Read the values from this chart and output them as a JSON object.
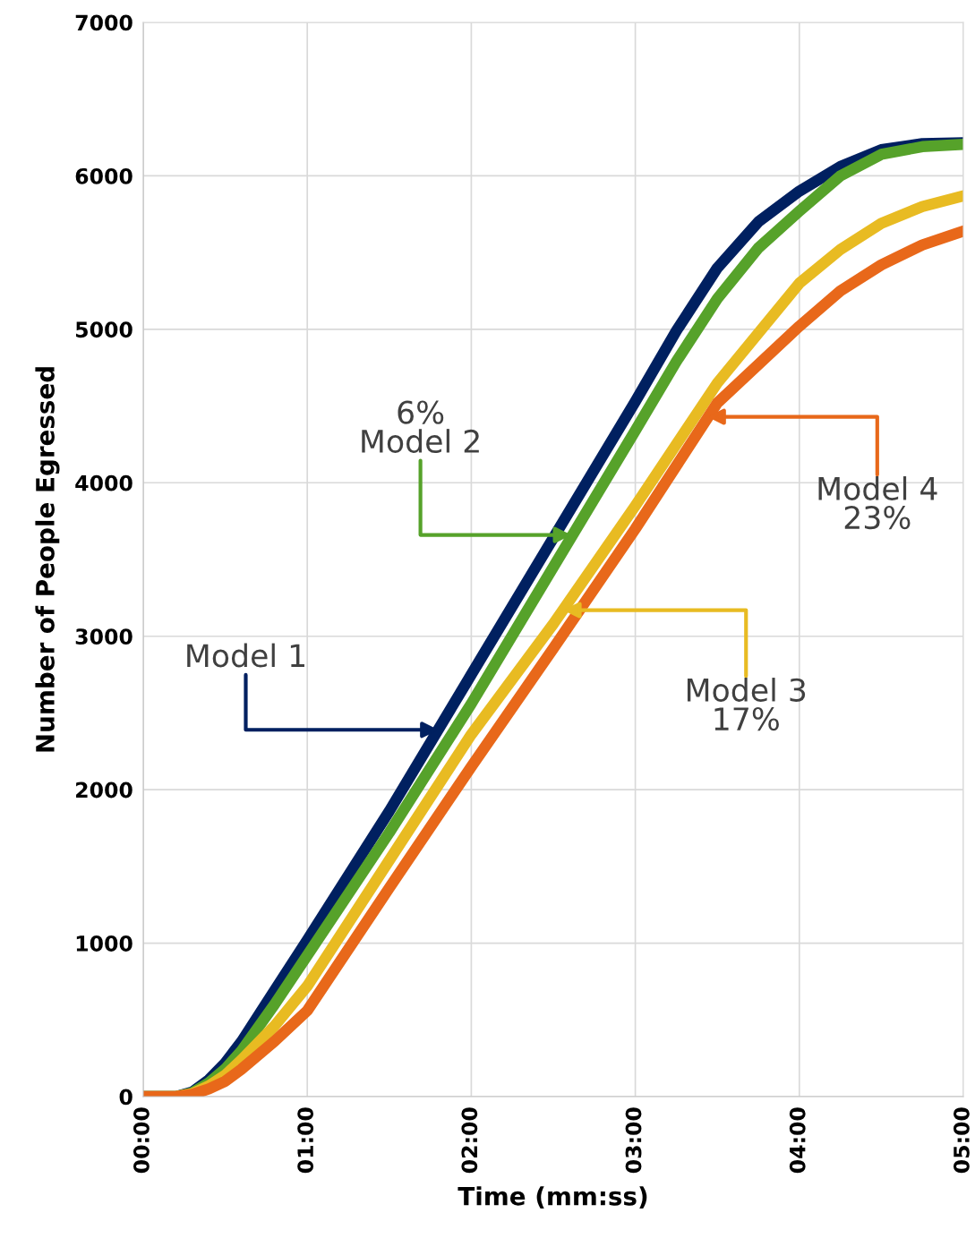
{
  "chart_data": {
    "type": "line",
    "xlabel": "Time (mm:ss)",
    "ylabel": "Number of People Egressed",
    "xlim": [
      0,
      5
    ],
    "xticks": [
      {
        "value": 0,
        "label": "00:00"
      },
      {
        "value": 1,
        "label": "01:00"
      },
      {
        "value": 2,
        "label": "02:00"
      },
      {
        "value": 3,
        "label": "03:00"
      },
      {
        "value": 4,
        "label": "04:00"
      },
      {
        "value": 5,
        "label": "05:00"
      }
    ],
    "ylim": [
      0,
      7000
    ],
    "yticks": [
      0,
      1000,
      2000,
      3000,
      4000,
      5000,
      6000,
      7000
    ],
    "grid": true,
    "legend": false,
    "line_style": "solid",
    "series": [
      {
        "color": "#002060",
        "x": [
          0,
          0.2,
          0.3,
          0.4,
          0.5,
          0.6,
          0.8,
          1.0,
          1.5,
          2.0,
          2.5,
          3.0,
          3.25,
          3.5,
          3.75,
          4.0,
          4.25,
          4.5,
          4.75,
          5.0
        ],
        "values": [
          0,
          0,
          30,
          110,
          220,
          360,
          690,
          1020,
          1860,
          2750,
          3640,
          4530,
          4990,
          5400,
          5700,
          5900,
          6060,
          6170,
          6210,
          6215
        ]
      },
      {
        "color": "#56a22a",
        "x": [
          0,
          0.2,
          0.3,
          0.4,
          0.5,
          0.6,
          0.8,
          1.0,
          1.5,
          2.0,
          2.5,
          3.0,
          3.25,
          3.5,
          3.75,
          4.0,
          4.25,
          4.5,
          4.75,
          5.0
        ],
        "values": [
          0,
          0,
          25,
          90,
          180,
          300,
          600,
          920,
          1720,
          2560,
          3450,
          4340,
          4790,
          5200,
          5530,
          5770,
          6000,
          6140,
          6190,
          6205
        ]
      },
      {
        "color": "#e8bb22",
        "x": [
          0,
          0.2,
          0.3,
          0.4,
          0.5,
          0.6,
          0.8,
          1.0,
          1.5,
          2.0,
          2.5,
          3.0,
          3.5,
          4.0,
          4.25,
          4.5,
          4.75,
          5.0
        ],
        "values": [
          0,
          0,
          20,
          70,
          140,
          240,
          460,
          720,
          1540,
          2360,
          3080,
          3850,
          4650,
          5300,
          5520,
          5690,
          5800,
          5870
        ]
      },
      {
        "color": "#e8681a",
        "x": [
          0,
          0.2,
          0.3,
          0.4,
          0.5,
          0.6,
          0.8,
          1.0,
          1.5,
          2.0,
          2.5,
          3.0,
          3.5,
          4.0,
          4.25,
          4.5,
          4.75,
          5.0
        ],
        "values": [
          0,
          0,
          15,
          50,
          100,
          180,
          360,
          560,
          1360,
          2150,
          2920,
          3700,
          4520,
          5020,
          5250,
          5420,
          5550,
          5640
        ]
      }
    ],
    "annotations": [
      {
        "text": "Model 1",
        "x": 1.8,
        "y": 2390
      },
      {
        "text": "6%\nModel 2",
        "x": 2.61,
        "y": 3660
      },
      {
        "text": "Model 3\n17%",
        "x": 2.56,
        "y": 3170
      },
      {
        "text": "Model 4\n23%",
        "x": 3.44,
        "y": 4430
      }
    ]
  }
}
